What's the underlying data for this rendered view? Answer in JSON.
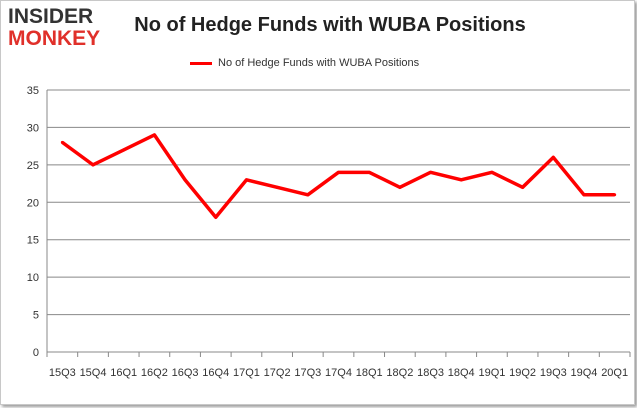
{
  "logo": {
    "line1": "INSIDER",
    "line2": "MONKEY"
  },
  "chart_data": {
    "type": "line",
    "title": "No of Hedge Funds with WUBA Positions",
    "categories": [
      "15Q3",
      "15Q4",
      "16Q1",
      "16Q2",
      "16Q3",
      "16Q4",
      "17Q1",
      "17Q2",
      "17Q3",
      "17Q4",
      "18Q1",
      "18Q2",
      "18Q3",
      "18Q4",
      "19Q1",
      "19Q2",
      "19Q3",
      "19Q4",
      "20Q1"
    ],
    "series": [
      {
        "name": "No of Hedge Funds with WUBA Positions",
        "values": [
          28,
          25,
          27,
          29,
          23,
          18,
          23,
          22,
          21,
          24,
          24,
          22,
          24,
          23,
          24,
          22,
          26,
          21,
          21
        ],
        "color": "#ff0000"
      }
    ],
    "ylim": [
      0,
      35
    ],
    "yticks": [
      0,
      5,
      10,
      15,
      20,
      25,
      30,
      35
    ],
    "grid": true,
    "legend": "top-center"
  }
}
